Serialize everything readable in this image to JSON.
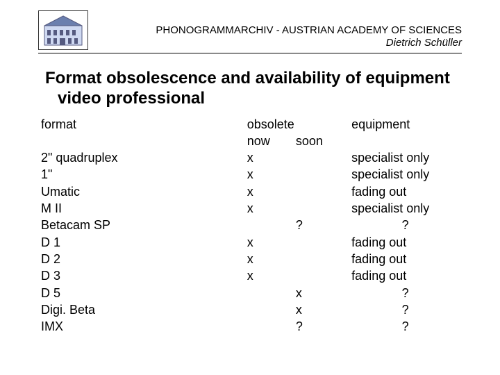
{
  "header": {
    "org": "PHONOGRAMMARCHIV - AUSTRIAN ACADEMY OF SCIENCES",
    "author": "Dietrich Schüller"
  },
  "title_line1": "Format obsolescence and availability of equipment",
  "title_line2": "video professional",
  "table": {
    "headers": {
      "format": "format",
      "obsolete": "obsolete",
      "now": "now",
      "soon": "soon",
      "equipment": "equipment"
    },
    "rows": [
      {
        "format": "2\" quadruplex",
        "now": "x",
        "soon": "",
        "equip": "specialist only",
        "equip_center": false
      },
      {
        "format": "1\"",
        "now": "x",
        "soon": "",
        "equip": "specialist only",
        "equip_center": false
      },
      {
        "format": "Umatic",
        "now": "x",
        "soon": "",
        "equip": "fading out",
        "equip_center": false
      },
      {
        "format": "M II",
        "now": "x",
        "soon": "",
        "equip": "specialist only",
        "equip_center": false
      },
      {
        "format": "Betacam SP",
        "now": "",
        "soon": "?",
        "equip": "?",
        "equip_center": true
      },
      {
        "format": "D 1",
        "now": "x",
        "soon": "",
        "equip": "fading out",
        "equip_center": false
      },
      {
        "format": "D 2",
        "now": "x",
        "soon": "",
        "equip": "fading out",
        "equip_center": false
      },
      {
        "format": "D 3",
        "now": "x",
        "soon": "",
        "equip": "fading out",
        "equip_center": false
      },
      {
        "format": "D 5",
        "now": "",
        "soon": "x",
        "equip": "?",
        "equip_center": true
      },
      {
        "format": "Digi. Beta",
        "now": "",
        "soon": "x",
        "equip": "?",
        "equip_center": true
      },
      {
        "format": "IMX",
        "now": "",
        "soon": "?",
        "equip": "?",
        "equip_center": true
      }
    ]
  },
  "colors": {
    "text": "#000000",
    "background": "#ffffff",
    "logo_roof": "#6b7fae",
    "logo_wall": "#cfd9f2",
    "logo_outline": "#555a80"
  }
}
